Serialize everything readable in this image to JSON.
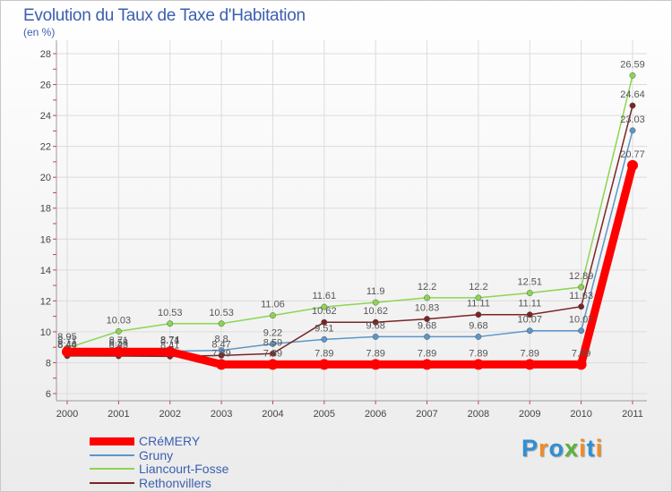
{
  "title": "Evolution du Taux de Taxe d'Habitation",
  "subtitle": "(en %)",
  "logo": {
    "letters": [
      "P",
      "r",
      "o",
      "x",
      "i",
      "t",
      "i"
    ],
    "colors": [
      "#2f8fd6",
      "#f28c28",
      "#2f8fd6",
      "#5ab33a",
      "#f28c28",
      "#2f8fd6",
      "#f28c28"
    ]
  },
  "chart_data": {
    "type": "line",
    "title": "Evolution du Taux de Taxe d'Habitation",
    "ylabel": "(en %)",
    "xlabel": "",
    "x": [
      "2000",
      "2001",
      "2002",
      "2003",
      "2004",
      "2005",
      "2006",
      "2007",
      "2008",
      "2009",
      "2010",
      "2011"
    ],
    "ylim": [
      6,
      28
    ],
    "yticks": [
      "6",
      "8",
      "10",
      "12",
      "14",
      "16",
      "18",
      "20",
      "22",
      "24",
      "26",
      "28"
    ],
    "grid": true,
    "legend_position": "bottom-left",
    "series": [
      {
        "name": "Gruny",
        "color": "#5b96cb",
        "emphasis": false,
        "values": [
          8.46,
          8.58,
          8.74,
          8.8,
          9.22,
          9.51,
          9.68,
          9.68,
          9.68,
          10.07,
          10.07,
          23.03
        ],
        "labels": [
          "8.46",
          "8.58",
          "8.74",
          "8.8",
          "9.22",
          "9.51",
          "9.68",
          "9.68",
          "9.68",
          "10.07",
          "10.07",
          "23.03"
        ]
      },
      {
        "name": "Liancourt-Fosse",
        "color": "#8bd651",
        "emphasis": false,
        "values": [
          8.95,
          10.03,
          10.53,
          10.53,
          11.06,
          11.61,
          11.9,
          12.2,
          12.2,
          12.51,
          12.89,
          26.59
        ],
        "labels": [
          "8.95",
          "10.03",
          "10.53",
          "10.53",
          "11.06",
          "11.61",
          "11.9",
          "12.2",
          "12.2",
          "12.51",
          "12.89",
          "26.59"
        ]
      },
      {
        "name": "Rethonvillers",
        "color": "#7a2525",
        "emphasis": false,
        "values": [
          8.44,
          8.43,
          8.41,
          8.47,
          8.59,
          10.62,
          10.62,
          10.83,
          11.11,
          11.11,
          11.63,
          24.64
        ],
        "labels": [
          "8.44",
          "8.43",
          "8.41",
          "8.47",
          "8.59",
          "10.62",
          "10.62",
          "10.83",
          "11.11",
          "11.11",
          "11.63",
          "24.64"
        ]
      },
      {
        "name": "CRéMERY",
        "color": "#ff0000",
        "emphasis": true,
        "values": [
          8.71,
          8.71,
          8.71,
          7.89,
          7.89,
          7.89,
          7.89,
          7.89,
          7.89,
          7.89,
          7.89,
          20.77
        ],
        "labels": [
          "8.71",
          "8.71",
          "8.71",
          "7.89",
          "7.89",
          "7.89",
          "7.89",
          "7.89",
          "7.89",
          "7.89",
          "7.89",
          "20.77"
        ]
      }
    ],
    "legend_order": [
      "CRéMERY",
      "Gruny",
      "Liancourt-Fosse",
      "Rethonvillers"
    ]
  }
}
